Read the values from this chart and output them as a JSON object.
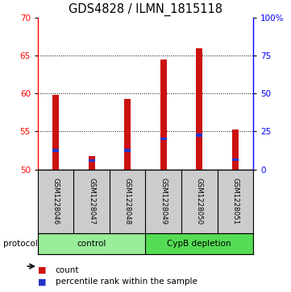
{
  "title": "GDS4828 / ILMN_1815118",
  "samples": [
    "GSM1228046",
    "GSM1228047",
    "GSM1228048",
    "GSM1228049",
    "GSM1228050",
    "GSM1228051"
  ],
  "counts": [
    59.8,
    51.7,
    59.3,
    64.5,
    66.0,
    55.3
  ],
  "percentiles": [
    52.5,
    51.2,
    52.5,
    54.0,
    54.5,
    51.3
  ],
  "base": 50,
  "ylim_left": [
    50,
    70
  ],
  "ylim_right": [
    0,
    100
  ],
  "yticks_left": [
    50,
    55,
    60,
    65,
    70
  ],
  "yticks_right": [
    0,
    25,
    50,
    75,
    100
  ],
  "bar_color": "#cc1111",
  "percentile_color": "#2233cc",
  "bar_width": 0.18,
  "groups": [
    {
      "label": "control",
      "indices": [
        0,
        1,
        2
      ],
      "color": "#99ee99"
    },
    {
      "label": "CypB depletion",
      "indices": [
        3,
        4,
        5
      ],
      "color": "#55dd55"
    }
  ],
  "protocol_label": "protocol",
  "legend_count_label": "count",
  "legend_pct_label": "percentile rank within the sample",
  "background_color": "#ffffff",
  "plot_bg_color": "#ffffff",
  "sample_bg_color": "#cccccc",
  "title_fontsize": 10.5,
  "tick_fontsize": 7.5,
  "label_fontsize": 8
}
